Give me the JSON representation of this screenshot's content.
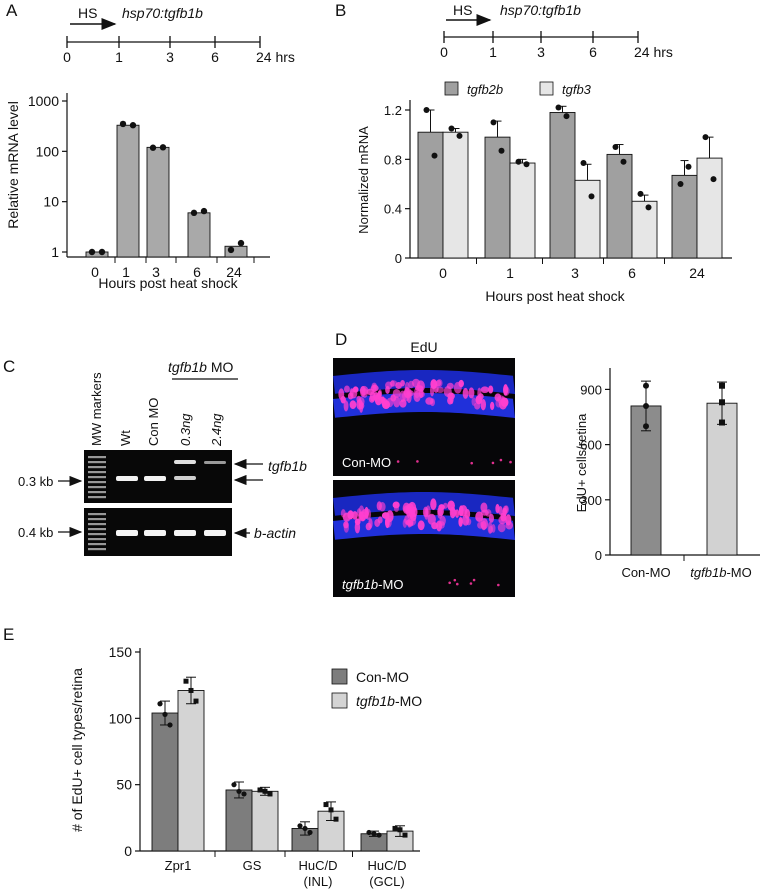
{
  "panels": {
    "A": {
      "letter": "A",
      "timeline": {
        "hs_label": "HS",
        "construct": "hsp70:tgfb1b",
        "ticks": [
          "0",
          "1",
          "3",
          "6",
          "24 hrs"
        ]
      },
      "chart_data": {
        "type": "bar",
        "scale": "log",
        "ylabel": "Relative  mRNA level",
        "xlabel": "Hours post heat shock",
        "categories": [
          "0",
          "1",
          "3",
          "6",
          "24"
        ],
        "values": [
          1.0,
          330,
          120,
          6,
          1.3
        ],
        "points": [
          [
            1.0,
            1.0
          ],
          [
            350,
            330
          ],
          [
            118,
            120
          ],
          [
            6,
            6.5
          ],
          [
            1.1,
            1.5
          ]
        ],
        "yticks": [
          1,
          10,
          100,
          1000
        ],
        "ytick_labels": [
          "1",
          "10",
          "100",
          "1000"
        ],
        "ylim": [
          0.9,
          1500
        ],
        "bar_color": "#a9a9a9"
      }
    },
    "B": {
      "letter": "B",
      "timeline": {
        "hs_label": "HS",
        "construct": "hsp70:tgfb1b",
        "ticks": [
          "0",
          "1",
          "3",
          "6",
          "24 hrs"
        ]
      },
      "chart_data": {
        "type": "bar",
        "ylabel": "Normalized  mRNA",
        "xlabel": "Hours post heat shock",
        "categories": [
          "0",
          "1",
          "3",
          "6",
          "24"
        ],
        "series": [
          {
            "name": "tgfb2b",
            "color": "#a0a0a0",
            "values": [
              1.02,
              0.98,
              1.18,
              0.84,
              0.67
            ],
            "err": [
              0.18,
              0.13,
              0.05,
              0.08,
              0.12
            ],
            "points": [
              [
                1.2,
                0.83
              ],
              [
                1.1,
                0.87
              ],
              [
                1.22,
                1.15
              ],
              [
                0.9,
                0.78
              ],
              [
                0.6,
                0.74
              ]
            ]
          },
          {
            "name": "tgfb3",
            "color": "#e6e6e6",
            "values": [
              1.02,
              0.77,
              0.63,
              0.46,
              0.81
            ],
            "err": [
              0.03,
              0.03,
              0.13,
              0.05,
              0.17
            ],
            "points": [
              [
                1.05,
                0.99
              ],
              [
                0.78,
                0.76
              ],
              [
                0.77,
                0.5
              ],
              [
                0.52,
                0.41
              ],
              [
                0.98,
                0.64
              ]
            ]
          }
        ],
        "yticks": [
          0,
          0.4,
          0.8,
          1.2
        ],
        "ytick_labels": [
          "0",
          "0.4",
          "0.8",
          "1.2"
        ],
        "ylim": [
          0,
          1.3
        ]
      }
    },
    "C": {
      "letter": "C",
      "lanes": [
        "MW markers",
        "Wt",
        "Con MO",
        "0.3ng",
        "2.4ng"
      ],
      "group_label": "tgfb1b",
      "group_suffix": " MO",
      "size_top": "0.3 kb",
      "size_bottom": "0.4 kb",
      "band_top": "tgfb1b",
      "band_bottom": "b-actin"
    },
    "D": {
      "letter": "D",
      "image_title": "EdU",
      "image_top_label": "Con-MO",
      "image_bottom_label": "tgfb1b",
      "image_bottom_suffix": "-MO",
      "chart_data": {
        "type": "bar",
        "ylabel": "EdU+ cells/retina",
        "categories": [
          "Con-MO",
          "tgfb1b-MO"
        ],
        "values": [
          810,
          825
        ],
        "err": [
          135,
          115
        ],
        "points": [
          [
            700,
            810,
            920
          ],
          [
            720,
            830,
            920
          ]
        ],
        "colors": [
          "#8c8c8c",
          "#d2d2d2"
        ],
        "yticks": [
          0,
          300,
          600,
          900
        ],
        "ytick_labels": [
          "0",
          "300",
          "600",
          "900"
        ],
        "ylim": [
          0,
          1000
        ],
        "xlabels": {
          "con": "Con-MO",
          "tg_italic": "tgfb1b",
          "tg_suffix": "-MO"
        }
      }
    },
    "E": {
      "letter": "E",
      "chart_data": {
        "type": "bar",
        "ylabel": "# of EdU+ cell types/retina",
        "categories": [
          "Zpr1",
          "GS",
          "HuC/D",
          "HuC/D"
        ],
        "category_sub": [
          "",
          "",
          "(INL)",
          "(GCL)"
        ],
        "series": [
          {
            "name": "Con-MO",
            "color": "#7d7d7d",
            "values": [
              104,
              46,
              17,
              13
            ],
            "err": [
              9,
              6,
              5,
              2
            ],
            "points": [
              [
                111,
                103,
                95
              ],
              [
                50,
                45,
                43
              ],
              [
                19,
                17,
                14
              ],
              [
                14,
                13,
                12
              ]
            ]
          },
          {
            "name": "tgfb1b-MO",
            "color": "#d4d4d4",
            "values": [
              121,
              45,
              30,
              15
            ],
            "err": [
              10,
              3,
              7,
              4
            ],
            "points": [
              [
                128,
                121,
                113
              ],
              [
                46,
                45,
                43
              ],
              [
                35,
                31,
                24
              ],
              [
                17,
                16,
                12
              ]
            ]
          }
        ],
        "legend": {
          "con": "Con-MO",
          "tg_italic": "tgfb1b",
          "tg_suffix": "-MO"
        },
        "yticks": [
          0,
          50,
          100,
          150
        ],
        "ytick_labels": [
          "0",
          "50",
          "100",
          "150"
        ],
        "ylim": [
          0,
          150
        ]
      }
    }
  }
}
